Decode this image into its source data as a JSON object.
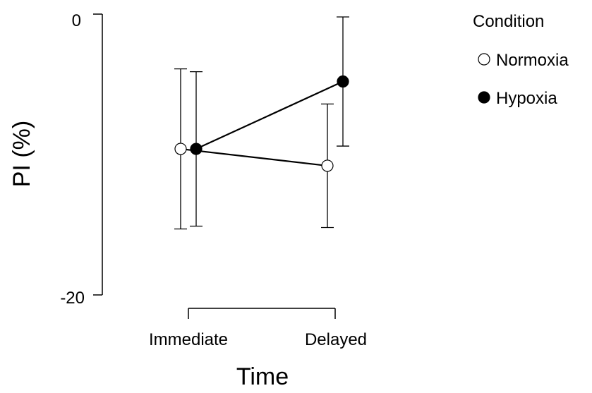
{
  "chart_data": {
    "type": "line",
    "title": "",
    "xlabel": "Time",
    "ylabel": "PI (%)",
    "categories": [
      "Immediate",
      "Delayed"
    ],
    "yticks": [
      0,
      -20
    ],
    "ytick_labels": [
      "0",
      "-20"
    ],
    "ylim": [
      -20,
      0
    ],
    "grid": false,
    "legend": {
      "title": "Condition",
      "placement": "right"
    },
    "series": [
      {
        "name": "Normoxia",
        "marker": "open-circle",
        "color": "#000000",
        "fill": "#ffffff",
        "values": [
          -9.6,
          -10.8
        ],
        "error_low": [
          -15.3,
          -15.2
        ],
        "error_high": [
          -3.9,
          -6.4
        ]
      },
      {
        "name": "Hypoxia",
        "marker": "filled-circle",
        "color": "#000000",
        "fill": "#000000",
        "values": [
          -9.6,
          -4.8
        ],
        "error_low": [
          -15.1,
          -9.4
        ],
        "error_high": [
          -4.1,
          -0.2
        ]
      }
    ]
  }
}
